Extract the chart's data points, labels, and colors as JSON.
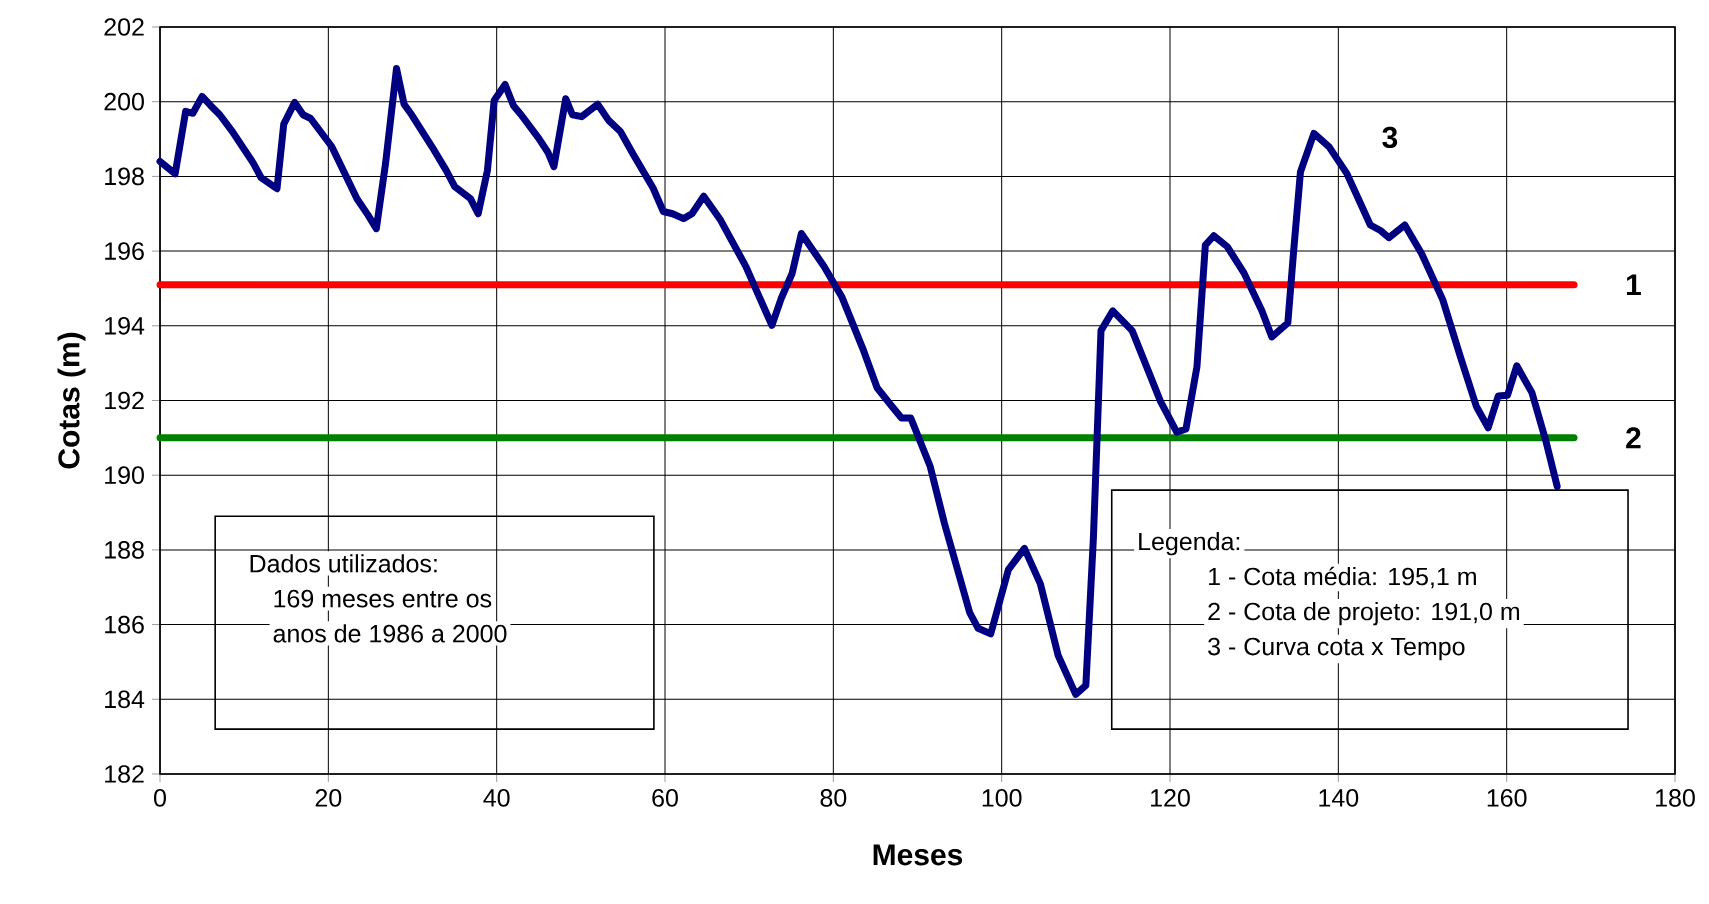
{
  "chart_data": {
    "type": "line",
    "xlabel": "Meses",
    "ylabel": "Cotas (m)",
    "xlim": [
      0,
      180
    ],
    "ylim": [
      182,
      202
    ],
    "xticks": [
      0,
      20,
      40,
      60,
      80,
      100,
      120,
      140,
      160,
      180
    ],
    "yticks": [
      182,
      184,
      186,
      188,
      190,
      192,
      194,
      196,
      198,
      200,
      202
    ],
    "grid": true,
    "legend": false,
    "marker": "none",
    "line_style": "solid",
    "series": [
      {
        "name": "1",
        "color": "#ff0000",
        "x": [
          0,
          168
        ],
        "values": [
          195.1,
          195.1
        ]
      },
      {
        "name": "2",
        "color": "#008000",
        "x": [
          0,
          168
        ],
        "values": [
          191.0,
          191.0
        ]
      },
      {
        "name": "3",
        "color": "#000080",
        "x": [
          0,
          1.8,
          3.05,
          3.9,
          5.0,
          6.0,
          7.1,
          8.6,
          11.1,
          12.0,
          13.9,
          14.7,
          16.0,
          17.0,
          17.9,
          20.4,
          23.4,
          24.7,
          25.7,
          26.8,
          28.1,
          29.0,
          29.9,
          32.3,
          34.0,
          35.0,
          36.9,
          37.8,
          38.9,
          39.7,
          41.0,
          42.0,
          42.9,
          45.0,
          46.1,
          46.8,
          48.2,
          49.0,
          50.1,
          52.0,
          53.3,
          54.7,
          56.2,
          58.6,
          59.8,
          60.9,
          62.2,
          63.2,
          64.6,
          66.6,
          69.6,
          72.7,
          73.8,
          75.1,
          76.2,
          78.9,
          81.0,
          83.5,
          85.2,
          86.9,
          88.1,
          89.2,
          91.5,
          93.2,
          96.2,
          97.2,
          98.7,
          100.8,
          102.7,
          104.6,
          106.7,
          108.8,
          110.0,
          110.9,
          111.8,
          113.2,
          115.5,
          118.9,
          120.8,
          121.9,
          123.2,
          124.2,
          125.2,
          126.8,
          128.8,
          130.9,
          132.1,
          134.0,
          134.7,
          135.5,
          137.1,
          138.9,
          141.0,
          143.8,
          145.0,
          146.0,
          147.9,
          149.9,
          152.4,
          154.5,
          156.4,
          157.8,
          159.0,
          160.1,
          161.2,
          163.0,
          164.7,
          166.0
        ],
        "values": [
          198.4,
          198.07,
          199.74,
          199.69,
          200.14,
          199.9,
          199.65,
          199.2,
          198.35,
          197.97,
          197.67,
          199.4,
          199.98,
          199.65,
          199.55,
          198.8,
          197.4,
          196.97,
          196.6,
          198.35,
          200.89,
          199.93,
          199.65,
          198.8,
          198.16,
          197.73,
          197.4,
          197.0,
          198.16,
          200.03,
          200.46,
          199.89,
          199.65,
          199.02,
          198.64,
          198.26,
          200.08,
          199.65,
          199.6,
          199.93,
          199.5,
          199.2,
          198.6,
          197.68,
          197.06,
          197.0,
          196.87,
          197.0,
          197.47,
          196.83,
          195.59,
          194.01,
          194.73,
          195.4,
          196.47,
          195.59,
          194.78,
          193.39,
          192.34,
          191.86,
          191.53,
          191.53,
          190.24,
          188.71,
          186.32,
          185.9,
          185.75,
          187.47,
          188.04,
          187.09,
          185.18,
          184.13,
          184.37,
          188.33,
          193.87,
          194.4,
          193.87,
          191.96,
          191.15,
          191.24,
          192.9,
          196.16,
          196.41,
          196.12,
          195.41,
          194.41,
          193.7,
          194.08,
          196.03,
          198.12,
          199.15,
          198.79,
          198.08,
          196.7,
          196.55,
          196.36,
          196.7,
          195.93,
          194.7,
          193.17,
          191.84,
          191.27,
          192.12,
          192.14,
          192.93,
          192.21,
          190.88,
          189.7
        ]
      }
    ],
    "annotations": [
      "Dados utilizados:",
      "169 meses entre os",
      "anos de 1986 a 2000",
      "Legenda:",
      "1 - Cota média: 195,1 m",
      "2 - Cota de projeto: 191,0 m",
      "3 - Curva cota x Tempo"
    ]
  }
}
